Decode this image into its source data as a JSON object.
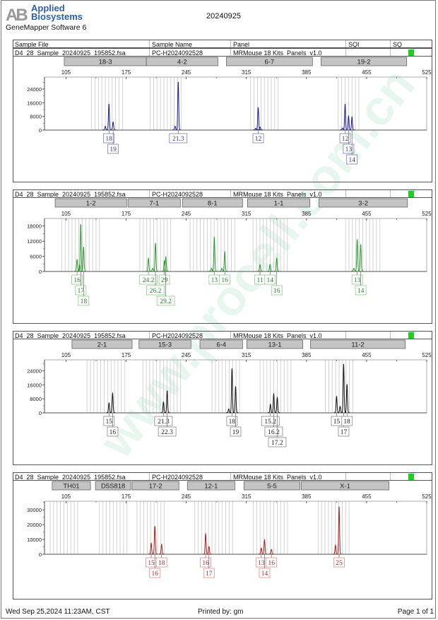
{
  "header": {
    "logo_text_line1": "Applied",
    "logo_text_line2": "Biosystems",
    "logo_glyph": "AB",
    "software": "GeneMapper Software 6",
    "title": "20240925"
  },
  "columns": [
    "Sample File",
    "Sample Name",
    "Panel",
    "SQI",
    "SQ"
  ],
  "watermark": "www.procell.com.cn",
  "footer": {
    "datetime": "Wed Sep 25,2024 11:23AM, CST",
    "printed_by": "Printed by: gm",
    "page": "Page 1 of 1"
  },
  "colors": {
    "sq_pass": "#22cc22"
  },
  "chart_data": [
    {
      "type": "line",
      "sample_file": "D4_28_Sample_20240925_195852.fsa",
      "sample_name": "PC-H2024092528",
      "panel": "MRMouse 18 Kits_Panels_v1.0",
      "sqi": "",
      "color": "#1c1c9e",
      "label_color": "#3a3a8c",
      "label_border": "#7a7ab0",
      "x_ticks": [
        105,
        175,
        245,
        315,
        385,
        455,
        525
      ],
      "xlim": [
        80,
        525
      ],
      "y_ticks": [
        0,
        8000,
        16000,
        24000
      ],
      "ylim": [
        0,
        31000
      ],
      "markers": [
        {
          "label": "18-3",
          "start": 103,
          "end": 198.6
        },
        {
          "label": "4-2",
          "start": 198.6,
          "end": 281.8
        },
        {
          "label": "6-7",
          "start": 291.7,
          "end": 392
        },
        {
          "label": "19-2",
          "start": 402,
          "end": 501.7
        }
      ],
      "bin_ranges": [
        [
          134.8,
          172
        ],
        [
          203,
          240
        ],
        [
          320,
          353
        ],
        [
          422,
          446
        ]
      ],
      "peaks": [
        {
          "bp": 150.8,
          "height": 2000
        },
        {
          "bp": 155,
          "height": 15000,
          "allele": "18",
          "row": 0
        },
        {
          "bp": 159.9,
          "height": 4500,
          "allele": "19",
          "row": 1
        },
        {
          "bp": 232,
          "height": 2000
        },
        {
          "bp": 235.7,
          "height": 27900,
          "allele": "21.3",
          "row": 0
        },
        {
          "bp": 326,
          "height": 800
        },
        {
          "bp": 328.8,
          "height": 13000,
          "allele": "12",
          "row": 0
        },
        {
          "bp": 331,
          "height": 1500
        },
        {
          "bp": 427,
          "height": 1000
        },
        {
          "bp": 430,
          "height": 15000,
          "allele": "12",
          "row": 0
        },
        {
          "bp": 434,
          "height": 8000,
          "allele": "13",
          "row": 1
        },
        {
          "bp": 438,
          "height": 7500,
          "allele": "14",
          "row": 2
        }
      ]
    },
    {
      "type": "line",
      "sample_file": "D4_28_Sample_20240925_195852.fsa",
      "sample_name": "PC-H2024092528",
      "panel": "MRMouse 18 Kits_Panels_v1.0",
      "sqi": "",
      "color": "#2a9a2a",
      "label_color": "#2f7f2f",
      "label_border": "#8fc88f",
      "x_ticks": [
        105,
        175,
        245,
        315,
        385,
        455,
        525
      ],
      "xlim": [
        80,
        525
      ],
      "y_ticks": [
        0,
        6000,
        12000,
        18000
      ],
      "ylim": [
        0,
        21000
      ],
      "markers": [
        {
          "label": "1-2",
          "start": 92.4,
          "end": 175.6
        },
        {
          "label": "7-1",
          "start": 177.2,
          "end": 238.2
        },
        {
          "label": "8-1",
          "start": 240.6,
          "end": 310.6
        },
        {
          "label": "1-1",
          "start": 316.4,
          "end": 389
        },
        {
          "label": "3-2",
          "start": 399.6,
          "end": 502.6
        }
      ],
      "bin_ranges": [
        [
          100,
          146
        ],
        [
          191,
          229
        ],
        [
          249.5,
          301.6
        ],
        [
          322.8,
          366.7
        ],
        [
          430.5,
          472.5
        ]
      ],
      "peaks": [
        {
          "bp": 117.9,
          "height": 4500,
          "allele": "16",
          "row": 0
        },
        {
          "bp": 121,
          "height": 2500
        },
        {
          "bp": 122.2,
          "height": 18500,
          "allele": "17",
          "row": 1
        },
        {
          "bp": 125.5,
          "height": 9500,
          "allele": "18",
          "row": 2
        },
        {
          "bp": 201,
          "height": 5000,
          "allele": "24.2",
          "row": 0
        },
        {
          "bp": 206,
          "height": 1000
        },
        {
          "bp": 209.2,
          "height": 11000,
          "allele": "26.2",
          "row": 1
        },
        {
          "bp": 219.5,
          "height": 4000,
          "allele": "29",
          "row": 0
        },
        {
          "bp": 221.2,
          "height": 5500,
          "allele": "29.2",
          "row": 2
        },
        {
          "bp": 274.5,
          "height": 1000
        },
        {
          "bp": 277.7,
          "height": 13500,
          "allele": "13",
          "row": 0
        },
        {
          "bp": 286.5,
          "height": 1000
        },
        {
          "bp": 289.9,
          "height": 7500,
          "allele": "16",
          "row": 0
        },
        {
          "bp": 330.9,
          "height": 2500,
          "allele": "11",
          "row": 0
        },
        {
          "bp": 342.6,
          "height": 2500,
          "allele": "14",
          "row": 0
        },
        {
          "bp": 350.4,
          "height": 5000,
          "allele": "16",
          "row": 1
        },
        {
          "bp": 440.2,
          "height": 1000
        },
        {
          "bp": 444.1,
          "height": 12500,
          "allele": "13",
          "row": 0
        },
        {
          "bp": 448.2,
          "height": 10500,
          "allele": "14",
          "row": 1
        }
      ]
    },
    {
      "type": "line",
      "sample_file": "D4_28_Sample_20240925_195852.fsa",
      "sample_name": "PC-H2024092528",
      "panel": "MRMouse 18 Kits_Panels_v1.0",
      "sqi": "",
      "color": "#111111",
      "label_color": "#222222",
      "label_border": "#888888",
      "x_ticks": [
        105,
        175,
        245,
        315,
        385,
        455,
        525
      ],
      "xlim": [
        80,
        525
      ],
      "y_ticks": [
        0,
        8000,
        16000,
        24000
      ],
      "ylim": [
        0,
        30200
      ],
      "markers": [
        {
          "label": "2-1",
          "start": 112,
          "end": 182
        },
        {
          "label": "15-3",
          "start": 190,
          "end": 250.5
        },
        {
          "label": "6-4",
          "start": 261,
          "end": 310.6
        },
        {
          "label": "13-1",
          "start": 315.6,
          "end": 380.7
        },
        {
          "label": "11-2",
          "start": 389.7,
          "end": 500
        }
      ],
      "bin_ranges": [
        [
          129.5,
          176
        ],
        [
          194.5,
          241.5
        ],
        [
          275,
          308
        ],
        [
          331,
          367.5
        ],
        [
          407,
          441.6
        ]
      ],
      "peaks": [
        {
          "bp": 155.1,
          "height": 5400,
          "allele": "15",
          "row": 0
        },
        {
          "bp": 159.3,
          "height": 10900,
          "allele": "16",
          "row": 1
        },
        {
          "bp": 218.5,
          "height": 5900,
          "allele": "21.3",
          "row": 0
        },
        {
          "bp": 222.8,
          "height": 12400,
          "allele": "22.3",
          "row": 1
        },
        {
          "bp": 294.5,
          "height": 2000
        },
        {
          "bp": 298.3,
          "height": 25000,
          "allele": "18",
          "row": 0
        },
        {
          "bp": 302.5,
          "height": 14800,
          "allele": "19",
          "row": 1
        },
        {
          "bp": 343,
          "height": 4700,
          "allele": "15.2",
          "row": 0
        },
        {
          "bp": 346.9,
          "height": 10500,
          "allele": "16.2",
          "row": 1
        },
        {
          "bp": 351,
          "height": 8500,
          "allele": "17.2",
          "row": 2
        },
        {
          "bp": 420.1,
          "height": 9000,
          "allele": "15",
          "row": 0
        },
        {
          "bp": 424.2,
          "height": 3500
        },
        {
          "bp": 428.3,
          "height": 27500,
          "allele": "17",
          "row": 1
        },
        {
          "bp": 432.2,
          "height": 16000,
          "allele": "18",
          "row": 0
        }
      ]
    },
    {
      "type": "line",
      "sample_file": "D4_28_Sample_20240925_195852.fsa",
      "sample_name": "PC-H2024092528",
      "panel": "MRMouse 18 Kits_Panels_v1.0",
      "sqi": "",
      "color": "#b01e1e",
      "label_color": "#a03030",
      "label_border": "#d89090",
      "x_ticks": [
        105,
        175,
        245,
        315,
        385,
        455,
        525
      ],
      "xlim": [
        80,
        525
      ],
      "y_ticks": [
        0,
        10000,
        20000,
        30000
      ],
      "ylim": [
        0,
        35800
      ],
      "markers": [
        {
          "label": "TH01",
          "start": 89,
          "end": 133.5
        },
        {
          "label": "D5S818",
          "start": 139.3,
          "end": 180.5
        },
        {
          "label": "17-2",
          "start": 182,
          "end": 236.5
        },
        {
          "label": "12-1",
          "start": 246.4,
          "end": 301.6
        },
        {
          "label": "5-5",
          "start": 312.3,
          "end": 377.4
        },
        {
          "label": "X-1",
          "start": 379,
          "end": 481
        }
      ],
      "bin_ranges": [
        [
          86.6,
          121
        ],
        [
          144,
          178
        ],
        [
          187.6,
          221
        ],
        [
          255,
          301.6
        ],
        [
          323,
          363.4
        ],
        [
          398.6,
          438.3
        ]
      ],
      "peaks": [
        {
          "bp": 204.2,
          "height": 7250,
          "allele": "15",
          "row": 0
        },
        {
          "bp": 208.5,
          "height": 18700,
          "allele": "16",
          "row": 1
        },
        {
          "bp": 216.3,
          "height": 6500,
          "allele": "18",
          "row": 0
        },
        {
          "bp": 267.6,
          "height": 13400,
          "allele": "16",
          "row": 0
        },
        {
          "bp": 271.5,
          "height": 5000,
          "allele": "17",
          "row": 1
        },
        {
          "bp": 332.4,
          "height": 4000,
          "allele": "13",
          "row": 0
        },
        {
          "bp": 336.2,
          "height": 9500,
          "allele": "14",
          "row": 1
        },
        {
          "bp": 344.2,
          "height": 3000,
          "allele": "16",
          "row": 0
        },
        {
          "bp": 418.8,
          "height": 6000
        },
        {
          "bp": 423,
          "height": 32000,
          "allele": "25",
          "row": 0
        }
      ]
    }
  ]
}
